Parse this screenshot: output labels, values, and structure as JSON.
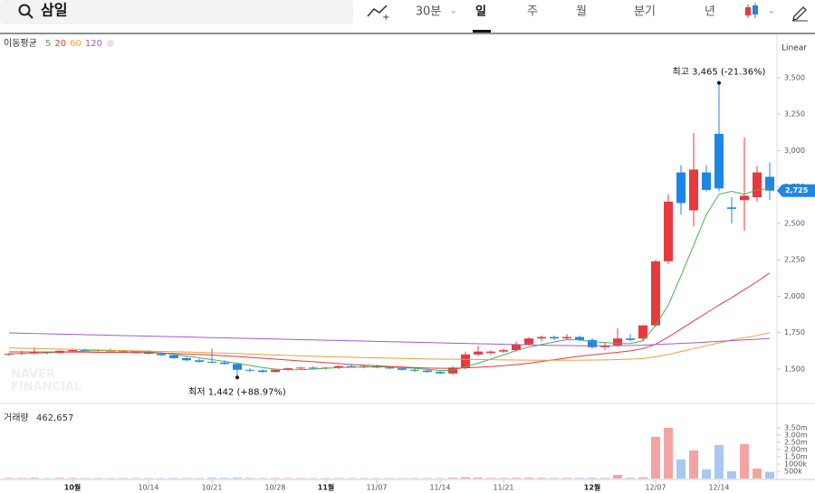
{
  "toolbar": {
    "search": "삼일",
    "tabs": [
      "30분",
      "일",
      "주",
      "월",
      "분기",
      "년"
    ]
  },
  "watermark": [
    "NAVER",
    "FINANCIAL"
  ],
  "chart_data": [
    {
      "type": "candlestick",
      "scale_label": "Linear",
      "legend_title": "이동평균",
      "up_color": "#e8393e",
      "down_color": "#1f86e8",
      "categories": [
        null,
        null,
        null,
        null,
        null,
        "10월",
        null,
        null,
        null,
        null,
        null,
        "10/14",
        null,
        null,
        null,
        null,
        "10/21",
        null,
        null,
        null,
        null,
        "10/28",
        null,
        null,
        null,
        "11월",
        null,
        null,
        null,
        "11/07",
        null,
        null,
        null,
        null,
        "11/14",
        null,
        null,
        null,
        null,
        "11/21",
        null,
        null,
        null,
        null,
        null,
        null,
        "12월",
        null,
        null,
        null,
        null,
        "12/07",
        null,
        null,
        null,
        null,
        "12/14",
        null,
        null,
        null,
        null
      ],
      "open": [
        1600,
        1605,
        1610,
        1615,
        1610,
        1625,
        1630,
        1625,
        1630,
        1620,
        1615,
        1620,
        1605,
        1595,
        1575,
        1560,
        1550,
        1545,
        1535,
        1495,
        1490,
        1480,
        1495,
        1505,
        1510,
        1505,
        1510,
        1520,
        1515,
        1520,
        1510,
        1505,
        1495,
        1490,
        1480,
        1470,
        1510,
        1600,
        1610,
        1620,
        1630,
        1670,
        1710,
        1720,
        1710,
        1720,
        1700,
        1650,
        1660,
        1710,
        1710,
        1800,
        2240,
        2850,
        2590,
        2850,
        3115,
        2610,
        2660,
        2680,
        2820
      ],
      "high": [
        1610,
        1625,
        1650,
        1620,
        1630,
        1640,
        1640,
        1635,
        1640,
        1630,
        1625,
        1630,
        1615,
        1600,
        1585,
        1570,
        1640,
        1560,
        1540,
        1505,
        1500,
        1500,
        1510,
        1515,
        1520,
        1515,
        1525,
        1530,
        1525,
        1530,
        1520,
        1515,
        1505,
        1500,
        1490,
        1520,
        1620,
        1660,
        1630,
        1640,
        1690,
        1720,
        1730,
        1730,
        1740,
        1730,
        1710,
        1680,
        1780,
        1740,
        1800,
        2250,
        2700,
        2900,
        3120,
        2900,
        3465,
        2680,
        3090,
        2895,
        2920
      ],
      "low": [
        1590,
        1595,
        1600,
        1600,
        1605,
        1615,
        1620,
        1615,
        1620,
        1610,
        1605,
        1600,
        1590,
        1570,
        1555,
        1545,
        1540,
        1530,
        1442,
        1480,
        1475,
        1475,
        1490,
        1495,
        1500,
        1495,
        1500,
        1510,
        1505,
        1505,
        1500,
        1490,
        1480,
        1475,
        1465,
        1460,
        1500,
        1590,
        1600,
        1610,
        1620,
        1660,
        1690,
        1700,
        1700,
        1690,
        1640,
        1630,
        1650,
        1690,
        1690,
        1790,
        2220,
        2560,
        2480,
        2720,
        2720,
        2500,
        2450,
        2650,
        2660
      ],
      "close": [
        1605,
        1610,
        1615,
        1610,
        1625,
        1630,
        1625,
        1630,
        1620,
        1615,
        1620,
        1605,
        1595,
        1575,
        1560,
        1550,
        1545,
        1535,
        1495,
        1490,
        1480,
        1495,
        1505,
        1510,
        1505,
        1510,
        1520,
        1515,
        1520,
        1510,
        1505,
        1495,
        1490,
        1480,
        1470,
        1510,
        1600,
        1620,
        1620,
        1630,
        1670,
        1710,
        1720,
        1710,
        1720,
        1700,
        1650,
        1660,
        1710,
        1700,
        1800,
        2240,
        2650,
        2640,
        2870,
        2730,
        2740,
        2600,
        2690,
        2850,
        2725
      ],
      "moving_averages": [
        {
          "name": "5",
          "color": "#4caf50",
          "values": [
            1605,
            1607,
            1609,
            1611,
            1617,
            1620,
            1623,
            1626,
            1626,
            1624,
            1622,
            1617,
            1611,
            1601,
            1590,
            1577,
            1565,
            1553,
            1540,
            1525,
            1510,
            1500,
            1495,
            1496,
            1500,
            1505,
            1510,
            1512,
            1514,
            1515,
            1514,
            1510,
            1505,
            1498,
            1490,
            1492,
            1515,
            1540,
            1568,
            1596,
            1628,
            1650,
            1668,
            1686,
            1702,
            1700,
            1688,
            1682,
            1676,
            1675,
            1694,
            1800,
            1940,
            2140,
            2350,
            2560,
            2700,
            2720,
            2700,
            2730,
            2740
          ]
        },
        {
          "name": "20",
          "color": "#e8393e",
          "values": [
            1618,
            1618,
            1617,
            1617,
            1617,
            1616,
            1616,
            1615,
            1615,
            1614,
            1613,
            1612,
            1610,
            1607,
            1604,
            1600,
            1596,
            1591,
            1586,
            1580,
            1574,
            1568,
            1562,
            1556,
            1550,
            1544,
            1538,
            1532,
            1527,
            1522,
            1518,
            1514,
            1510,
            1507,
            1505,
            1505,
            1508,
            1512,
            1517,
            1523,
            1530,
            1540,
            1552,
            1564,
            1576,
            1588,
            1598,
            1606,
            1615,
            1625,
            1640,
            1670,
            1720,
            1775,
            1830,
            1885,
            1940,
            1990,
            2045,
            2100,
            2160
          ]
        },
        {
          "name": "60",
          "color": "#f39c3c",
          "values": [
            1645,
            1643,
            1641,
            1639,
            1637,
            1635,
            1633,
            1631,
            1629,
            1627,
            1625,
            1623,
            1621,
            1619,
            1617,
            1615,
            1612,
            1609,
            1606,
            1603,
            1600,
            1597,
            1594,
            1591,
            1588,
            1585,
            1583,
            1581,
            1579,
            1577,
            1575,
            1573,
            1571,
            1569,
            1568,
            1567,
            1566,
            1565,
            1564,
            1563,
            1562,
            1561,
            1560,
            1560,
            1560,
            1561,
            1562,
            1563,
            1565,
            1568,
            1572,
            1585,
            1600,
            1620,
            1640,
            1660,
            1680,
            1700,
            1715,
            1730,
            1750
          ]
        },
        {
          "name": "120",
          "color": "#a259d9",
          "values": [
            1748,
            1746,
            1744,
            1742,
            1740,
            1738,
            1736,
            1734,
            1732,
            1730,
            1728,
            1726,
            1724,
            1722,
            1720,
            1718,
            1716,
            1714,
            1712,
            1710,
            1708,
            1706,
            1704,
            1702,
            1700,
            1698,
            1696,
            1694,
            1692,
            1690,
            1688,
            1686,
            1684,
            1682,
            1680,
            1678,
            1676,
            1674,
            1672,
            1670,
            1668,
            1666,
            1664,
            1662,
            1661,
            1660,
            1660,
            1660,
            1661,
            1662,
            1664,
            1668,
            1672,
            1676,
            1680,
            1685,
            1690,
            1695,
            1700,
            1705,
            1710
          ]
        }
      ],
      "annotations": {
        "high": "최고 3,465 (-21.36%)",
        "low": "최저 1,442 (+88.97%)"
      },
      "last_price_label": "2,725",
      "ylim": [
        1270,
        3798
      ],
      "yticks": [
        {
          "value": 3500,
          "label": "3,500"
        },
        {
          "value": 3250,
          "label": "3,250"
        },
        {
          "value": 3000,
          "label": "3,000"
        },
        {
          "value": 2750,
          "label": "2,750"
        },
        {
          "value": 2500,
          "label": "2,500"
        },
        {
          "value": 2250,
          "label": "2,250"
        },
        {
          "value": 2000,
          "label": "2,000"
        },
        {
          "value": 1750,
          "label": "1,750"
        },
        {
          "value": 1500,
          "label": "1,500"
        }
      ]
    },
    {
      "type": "bar",
      "title": "거래량",
      "current_label": "462,657",
      "up_color": "#f4a3a3",
      "down_color": "#a8c8f0",
      "values": [
        40000,
        35000,
        50000,
        30000,
        45000,
        38000,
        30000,
        28000,
        32000,
        30000,
        27000,
        35000,
        30000,
        38000,
        42000,
        36000,
        60000,
        45000,
        70000,
        40000,
        35000,
        38000,
        30000,
        28000,
        30000,
        27000,
        32000,
        30000,
        28000,
        31000,
        29000,
        30000,
        33000,
        35000,
        37000,
        60000,
        90000,
        70000,
        45000,
        40000,
        55000,
        60000,
        48000,
        42000,
        40000,
        45000,
        50000,
        40000,
        250000,
        60000,
        80000,
        2870000,
        3500000,
        1310000,
        1940000,
        630000,
        2310000,
        500000,
        2370000,
        690000,
        462657
      ],
      "ylim": [
        0,
        4800000
      ],
      "yticks": [
        {
          "value": 3500000,
          "label": "3.50m"
        },
        {
          "value": 3000000,
          "label": "3.00m"
        },
        {
          "value": 2500000,
          "label": "2.50m"
        },
        {
          "value": 2000000,
          "label": "2.00m"
        },
        {
          "value": 1500000,
          "label": "1.50m"
        },
        {
          "value": 1000000,
          "label": "1000k"
        },
        {
          "value": 500000,
          "label": "500k"
        }
      ]
    }
  ]
}
